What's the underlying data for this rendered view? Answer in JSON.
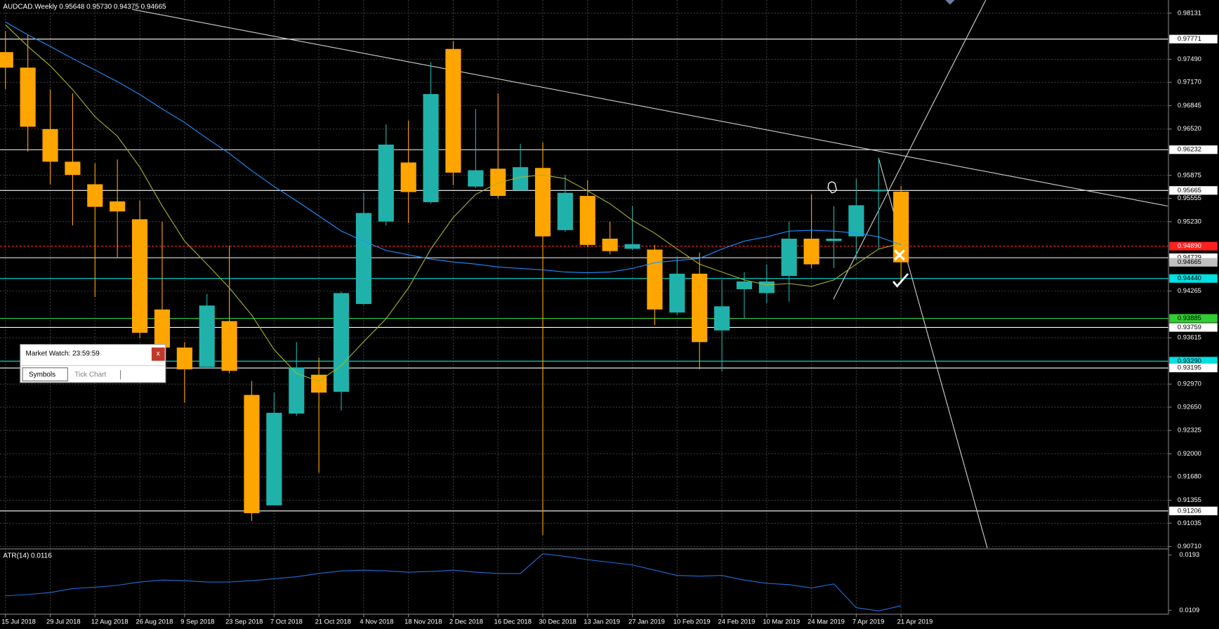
{
  "chart_data": [
    {
      "type": "candlestick",
      "title": "AUDCAD.Weekly 0.95648 0.95730 0.94375 0.94665",
      "categories": [
        "15 Jul 2018",
        null,
        "29 Jul 2018",
        null,
        "12 Aug 2018",
        null,
        "26 Aug 2018",
        null,
        "9 Sep 2018",
        null,
        "23 Sep 2018",
        null,
        "7 Oct 2018",
        null,
        "21 Oct 2018",
        null,
        "4 Nov 2018",
        null,
        "18 Nov 2018",
        null,
        "2 Dec 2018",
        null,
        "16 Dec 2018",
        null,
        "30 Dec 2018",
        null,
        "13 Jan 2019",
        null,
        "27 Jan 2019",
        null,
        "10 Feb 2019",
        null,
        "24 Feb 2019",
        null,
        "10 Mar 2019",
        null,
        "24 Mar 2019",
        null,
        "7 Apr 2019",
        null,
        "21 Apr 2019"
      ],
      "open": [
        0.9759,
        0.97374,
        0.96519,
        0.96065,
        0.95751,
        0.95513,
        0.95264,
        0.94009,
        0.93479,
        0.93209,
        0.93847,
        0.9282,
        0.91283,
        0.9256,
        0.93101,
        0.92863,
        0.94085,
        0.95232,
        0.96054,
        0.95502,
        0.97634,
        0.95719,
        0.95968,
        0.95665,
        0.95978,
        0.95113,
        0.95589,
        0.94994,
        0.94853,
        0.94842,
        0.93966,
        0.94507,
        0.93717,
        0.94291,
        0.94237,
        0.94475,
        0.94994,
        0.94961,
        0.95026,
        0.95654,
        0.95648
      ],
      "high": [
        0.97882,
        0.97828,
        0.97071,
        0.97017,
        0.96043,
        0.96097,
        0.95524,
        0.95232,
        0.93555,
        0.94226,
        0.94897,
        0.93014,
        0.92852,
        0.93555,
        0.93339,
        0.94258,
        0.95632,
        0.96584,
        0.96638,
        0.9745,
        0.97742,
        0.96801,
        0.97017,
        0.96314,
        0.96335,
        0.95881,
        0.95805,
        0.95232,
        0.95448,
        0.94907,
        0.94745,
        0.94799,
        0.94421,
        0.94529,
        0.94637,
        0.95232,
        0.95611,
        0.95448,
        0.95827,
        0.96119,
        0.9573
      ],
      "low": [
        0.97071,
        0.96206,
        0.95751,
        0.95178,
        0.94183,
        0.94723,
        0.93609,
        0.93393,
        0.92711,
        0.93209,
        0.93122,
        0.91067,
        0.91283,
        0.92527,
        0.91738,
        0.92603,
        0.94074,
        0.95178,
        0.9521,
        0.95481,
        0.9574,
        0.95697,
        0.95556,
        0.95665,
        0.90872,
        0.95091,
        0.94875,
        0.94778,
        0.94832,
        0.93793,
        0.93934,
        0.93176,
        0.93144,
        0.9388,
        0.94096,
        0.94118,
        0.94583,
        0.94583,
        0.94691,
        0.94853,
        0.94375
      ],
      "close": [
        0.97374,
        0.96552,
        0.96065,
        0.95881,
        0.95437,
        0.95373,
        0.93685,
        0.93479,
        0.93176,
        0.94064,
        0.93155,
        0.91175,
        0.92571,
        0.93198,
        0.92852,
        0.94237,
        0.95351,
        0.96303,
        0.95643,
        0.97006,
        0.95913,
        0.95946,
        0.95589,
        0.95989,
        0.95026,
        0.95632,
        0.94907,
        0.94821,
        0.94918,
        0.94009,
        0.94507,
        0.93555,
        0.94053,
        0.94399,
        0.94399,
        0.94994,
        0.94637,
        0.94994,
        0.95459,
        0.95675,
        0.94665
      ],
      "up_color": "#20b2aa",
      "down_color": "#ffa500",
      "series": [
        {
          "color": "#1e90ff",
          "values": [
            0.9801,
            0.9783,
            0.9767,
            0.975,
            0.9734,
            0.9718,
            0.97,
            0.968,
            0.9661,
            0.9639,
            0.9618,
            0.9594,
            0.9572,
            0.9552,
            0.9531,
            0.951,
            0.9496,
            0.9483,
            0.9477,
            0.9471,
            0.9467,
            0.9464,
            0.946,
            0.9458,
            0.9456,
            0.9453,
            0.9452,
            0.9453,
            0.9458,
            0.9466,
            0.9469,
            0.9472,
            0.9485,
            0.9496,
            0.9502,
            0.951,
            0.9511,
            0.951,
            0.9507,
            0.9502,
            0.9491
          ]
        },
        {
          "color": "#a4b52a",
          "values": [
            0.9797,
            0.9767,
            0.974,
            0.9707,
            0.9669,
            0.9642,
            0.9599,
            0.9545,
            0.9496,
            0.9464,
            0.9431,
            0.9393,
            0.9345,
            0.9312,
            0.9301,
            0.9323,
            0.9356,
            0.9388,
            0.9431,
            0.9485,
            0.9529,
            0.9561,
            0.9577,
            0.9585,
            0.9588,
            0.9583,
            0.9566,
            0.9548,
            0.9525,
            0.9507,
            0.9485,
            0.9464,
            0.9453,
            0.9442,
            0.9435,
            0.9437,
            0.9433,
            0.9442,
            0.9464,
            0.9485,
            0.9493
          ]
        }
      ],
      "levels": [
        {
          "value": 0.97771,
          "color": "#ffffff",
          "text": "#000000"
        },
        {
          "value": 0.96232,
          "color": "#ffffff",
          "text": "#000000"
        },
        {
          "value": 0.95665,
          "color": "#ffffff",
          "text": "#000000"
        },
        {
          "value": 0.9489,
          "label": "0.94890",
          "color": "#ff2020",
          "text": "#ffffff"
        },
        {
          "value": 0.94729,
          "color": "#ffffff",
          "text": "#000000"
        },
        {
          "value": 0.94665,
          "color": "#c0c0c0",
          "text": "#000000",
          "style": "none"
        },
        {
          "value": 0.9444,
          "label": "0.94440",
          "color": "#00e0e0",
          "text": "#000000"
        },
        {
          "value": 0.93885,
          "color": "#32cd32",
          "text": "#000000"
        },
        {
          "value": 0.93759,
          "color": "#ffffff",
          "text": "#000000"
        },
        {
          "value": 0.9329,
          "label": "0.93290",
          "color": "#00e0e0",
          "text": "#000000"
        },
        {
          "value": 0.93195,
          "color": "#ffffff",
          "text": "#000000"
        },
        {
          "value": 0.91206,
          "color": "#ffffff",
          "text": "#000000"
        }
      ],
      "ylim": [
        0.90688,
        0.98315
      ],
      "yticks": [
        0.98131,
        {
          "value": 0.9749,
          "label": "0.97490"
        },
        {
          "value": 0.9717,
          "label": "0.97170"
        },
        0.96845,
        {
          "value": 0.9652,
          "label": "0.96520"
        },
        0.95875,
        0.95555,
        {
          "value": 0.9523,
          "label": "0.95230"
        },
        0.94265,
        0.93615,
        {
          "value": 0.9297,
          "label": "0.92970"
        },
        {
          "value": 0.9265,
          "label": "0.92650"
        },
        0.92325,
        {
          "value": 0.92,
          "label": "0.92000"
        },
        {
          "value": 0.9168,
          "label": "0.91680"
        },
        0.91355,
        0.91035,
        {
          "value": 0.9071,
          "label": "0.90710"
        }
      ],
      "grid": true
    },
    {
      "type": "line",
      "title": "ATR(14) 0.0116",
      "color": "#1e6fd9",
      "values": [
        0.0131,
        0.0133,
        0.0136,
        0.0142,
        0.0144,
        0.0147,
        0.0152,
        0.0155,
        0.0154,
        0.0152,
        0.0152,
        0.0154,
        0.0157,
        0.016,
        0.0165,
        0.0169,
        0.017,
        0.0169,
        0.0167,
        0.0168,
        0.017,
        0.0167,
        0.0165,
        0.0165,
        0.0195,
        0.0191,
        0.0186,
        0.0182,
        0.0178,
        0.017,
        0.0162,
        0.0161,
        0.0162,
        0.0155,
        0.015,
        0.0148,
        0.0143,
        0.0149,
        0.0113,
        0.0108,
        0.0116
      ],
      "ylim": [
        0.0103,
        0.02
      ],
      "yticks": [
        0.0193,
        0.0109
      ]
    }
  ],
  "market_watch": {
    "title": "Market Watch: 23:59:59",
    "close": "x",
    "tabs": [
      "Symbols",
      "Tick Chart"
    ]
  }
}
